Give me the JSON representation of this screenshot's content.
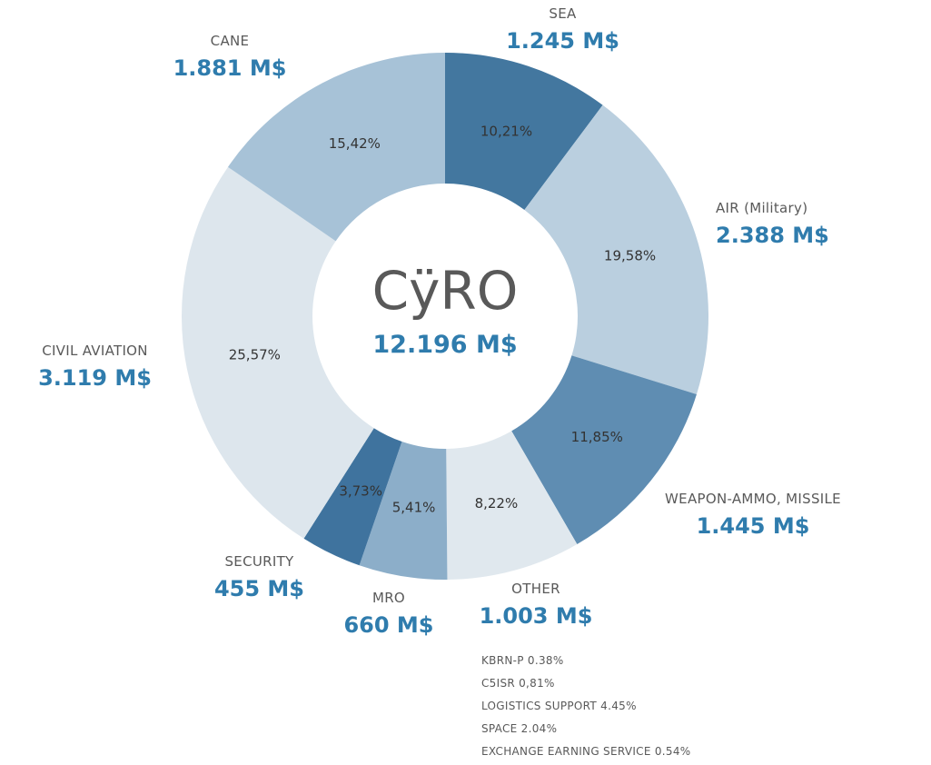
{
  "chart_data": {
    "type": "pie",
    "subtype": "donut",
    "title": "CÿRO",
    "center": {
      "label": "CÿRO",
      "total_label": "12.196 M$"
    },
    "legend_position": "around",
    "colors": {
      "value_text": "#2f7cad",
      "name_text": "#595959",
      "percent_text": "#333333"
    },
    "segments": [
      {
        "label": "SEA",
        "value_label": "1.245 M$",
        "value": 1245,
        "percent": 10.21,
        "percent_label": "10,21%",
        "color": "#43779f"
      },
      {
        "label": "AIR (Military)",
        "value_label": "2.388 M$",
        "value": 2388,
        "percent": 19.58,
        "percent_label": "19,58%",
        "color": "#bacfdf"
      },
      {
        "label": "WEAPON-AMMO, MISSILE",
        "value_label": "1.445 M$",
        "value": 1445,
        "percent": 11.85,
        "percent_label": "11,85%",
        "color": "#5f8db2"
      },
      {
        "label": "OTHER",
        "value_label": "1.003 M$",
        "value": 1003,
        "percent": 8.22,
        "percent_label": "8,22%",
        "color": "#e0e8ee"
      },
      {
        "label": "MRO",
        "value_label": "660 M$",
        "value": 660,
        "percent": 5.41,
        "percent_label": "5,41%",
        "color": "#8caec9"
      },
      {
        "label": "SECURITY",
        "value_label": "455 M$",
        "value": 455,
        "percent": 3.73,
        "percent_label": "3,73%",
        "color": "#3f739e"
      },
      {
        "label": "CIVIL AVIATION",
        "value_label": "3.119 M$",
        "value": 3119,
        "percent": 25.57,
        "percent_label": "25,57%",
        "color": "#dde6ed"
      },
      {
        "label": "CANE",
        "value_label": "1.881 M$",
        "value": 1881,
        "percent": 15.42,
        "percent_label": "15,42%",
        "color": "#a7c2d7"
      }
    ],
    "other_breakdown": [
      "KBRN-P 0.38%",
      "C5ISR 0,81%",
      "LOGISTICS SUPPORT 4.45%",
      "SPACE 2.04%",
      "EXCHANGE EARNING SERVICE 0.54%"
    ]
  }
}
